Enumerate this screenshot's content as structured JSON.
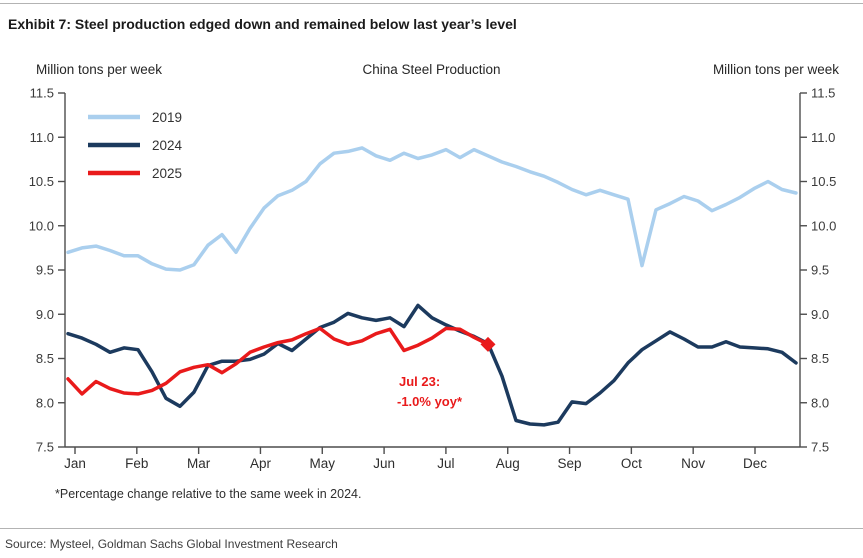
{
  "header": {
    "title": "Exhibit 7: Steel production edged down and remained below last year’s level"
  },
  "footnote": {
    "text": "*Percentage change relative to the same week in 2024."
  },
  "source": {
    "text": "Source: Mysteel, Goldman Sachs Global Investment Research"
  },
  "chart_data": {
    "type": "line",
    "title": "China Steel Production",
    "ylabel_left": "Million tons per week",
    "ylabel_right": "Million tons per week",
    "ylim": [
      7.5,
      11.5
    ],
    "ytick_step": 0.5,
    "grid": false,
    "legend_position": "top-left",
    "x_categories": [
      "Jan",
      "Feb",
      "Mar",
      "Apr",
      "May",
      "Jun",
      "Jul",
      "Aug",
      "Sep",
      "Oct",
      "Nov",
      "Dec"
    ],
    "x_resolution": "weekly",
    "axis_color": "#4d4d4d",
    "tick_label_color": "#3a3a3a",
    "series": [
      {
        "name": "2019",
        "color": "#aacfee",
        "values": [
          9.7,
          9.75,
          9.77,
          9.72,
          9.66,
          9.66,
          9.57,
          9.51,
          9.5,
          9.56,
          9.78,
          9.9,
          9.7,
          9.97,
          10.2,
          10.34,
          10.4,
          10.5,
          10.7,
          10.82,
          10.84,
          10.88,
          10.79,
          10.74,
          10.82,
          10.76,
          10.8,
          10.86,
          10.77,
          10.86,
          10.79,
          10.72,
          10.67,
          10.61,
          10.56,
          10.49,
          10.41,
          10.35,
          10.4,
          10.35,
          10.3,
          9.55,
          10.18,
          10.25,
          10.33,
          10.28,
          10.17,
          10.24,
          10.32,
          10.42,
          10.5,
          10.41,
          10.37
        ]
      },
      {
        "name": "2024",
        "color": "#1c3a5e",
        "values": [
          8.78,
          8.73,
          8.66,
          8.57,
          8.62,
          8.6,
          8.35,
          8.05,
          7.96,
          8.12,
          8.42,
          8.47,
          8.47,
          8.49,
          8.55,
          8.67,
          8.59,
          8.72,
          8.85,
          8.91,
          9.01,
          8.96,
          8.93,
          8.96,
          8.86,
          9.1,
          8.96,
          8.88,
          8.81,
          8.75,
          8.67,
          8.3,
          7.8,
          7.76,
          7.75,
          7.78,
          8.01,
          7.99,
          8.11,
          8.25,
          8.45,
          8.6,
          8.7,
          8.8,
          8.72,
          8.63,
          8.63,
          8.69,
          8.63,
          8.62,
          8.61,
          8.57,
          8.45
        ]
      },
      {
        "name": "2025",
        "color": "#e91a1b",
        "end_marker": "diamond",
        "values": [
          8.27,
          8.1,
          8.24,
          8.16,
          8.11,
          8.1,
          8.14,
          8.22,
          8.35,
          8.4,
          8.43,
          8.34,
          8.44,
          8.57,
          8.63,
          8.68,
          8.71,
          8.78,
          8.84,
          8.72,
          8.66,
          8.7,
          8.78,
          8.83,
          8.59,
          8.65,
          8.73,
          8.84,
          8.83,
          8.74,
          8.66
        ]
      }
    ],
    "annotation": {
      "line1": "Jul 23:",
      "line2": "-1.0% yoy*",
      "color": "#e91a1b",
      "marker": "diamond",
      "attached_to": "last point of 2025 series"
    }
  }
}
